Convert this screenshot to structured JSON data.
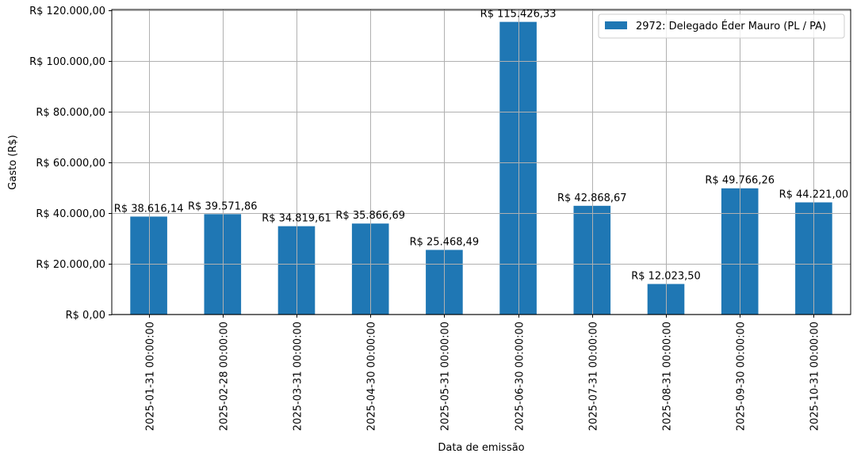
{
  "chart_data": {
    "type": "bar",
    "title": "",
    "xlabel": "Data de emissão",
    "ylabel": "Gasto (R$)",
    "ylim": [
      0,
      120000
    ],
    "grid": true,
    "legend_position": "upper right",
    "bar_color": "#1f77b4",
    "categories": [
      "2025-01-31 00:00:00",
      "2025-02-28 00:00:00",
      "2025-03-31 00:00:00",
      "2025-04-30 00:00:00",
      "2025-05-31 00:00:00",
      "2025-06-30 00:00:00",
      "2025-07-31 00:00:00",
      "2025-08-31 00:00:00",
      "2025-09-30 00:00:00",
      "2025-10-31 00:00:00"
    ],
    "series": [
      {
        "name": "2972: Delegado Éder Mauro (PL / PA)",
        "values": [
          38616.14,
          39571.86,
          34819.61,
          35866.69,
          25468.49,
          115426.33,
          42868.67,
          12023.5,
          49766.26,
          44221.0
        ]
      }
    ],
    "data_labels": [
      "R$ 38.616,14",
      "R$ 39.571,86",
      "R$ 34.819,61",
      "R$ 35.866,69",
      "R$ 25.468,49",
      "R$ 115.426,33",
      "R$ 42.868,67",
      "R$ 12.023,50",
      "R$ 49.766,26",
      "R$ 44.221,00"
    ],
    "yticks": [
      0,
      20000,
      40000,
      60000,
      80000,
      100000,
      120000
    ],
    "ytick_labels": [
      "R$ 0,00",
      "R$ 20.000,00",
      "R$ 40.000,00",
      "R$ 60.000,00",
      "R$ 80.000,00",
      "R$ 100.000,00",
      "R$ 120.000,00"
    ]
  }
}
